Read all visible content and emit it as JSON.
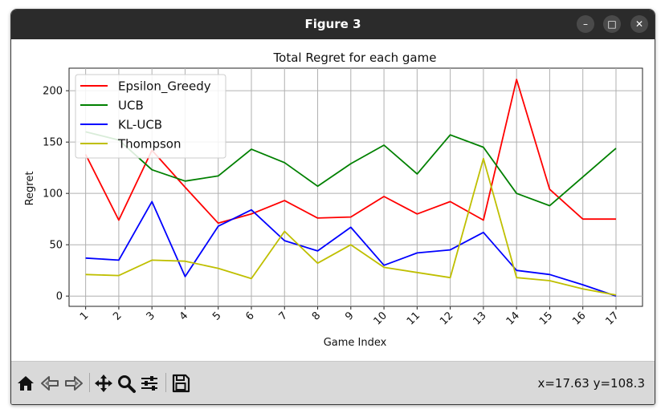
{
  "window": {
    "title": "Figure 3",
    "minimize_symbol": "–",
    "maximize_symbol": "□",
    "close_symbol": "✕"
  },
  "toolbar": {
    "buttons": [
      "home-icon",
      "back-icon",
      "forward-icon",
      "pan-icon",
      "zoom-icon",
      "configure-subplots-icon",
      "save-icon"
    ],
    "coords": "x=17.63 y=108.3"
  },
  "chart_data": {
    "type": "line",
    "title": "Total Regret for each game",
    "xlabel": "Game Index",
    "ylabel": "Regret",
    "x": [
      1,
      2,
      3,
      4,
      5,
      6,
      7,
      8,
      9,
      10,
      11,
      12,
      13,
      14,
      15,
      16,
      17
    ],
    "x_ticks": [
      "1",
      "2",
      "3",
      "4",
      "5",
      "6",
      "7",
      "8",
      "9",
      "10",
      "11",
      "12",
      "13",
      "14",
      "15",
      "16",
      "17"
    ],
    "y_ticks": [
      0,
      50,
      100,
      150,
      200
    ],
    "xlim": [
      0.5,
      17.8
    ],
    "ylim": [
      -10,
      222
    ],
    "grid": true,
    "legend_position": "upper-left",
    "series": [
      {
        "name": "Epsilon_Greedy",
        "color": "#ff0000",
        "values": [
          138,
          74,
          142,
          106,
          71,
          80,
          93,
          76,
          77,
          97,
          80,
          92,
          74,
          211,
          104,
          75,
          75
        ]
      },
      {
        "name": "UCB",
        "color": "#008000",
        "values": [
          160,
          152,
          123,
          112,
          117,
          143,
          130,
          107,
          129,
          147,
          119,
          157,
          145,
          100,
          88,
          116,
          144
        ]
      },
      {
        "name": "KL-UCB",
        "color": "#0000ff",
        "values": [
          37,
          35,
          92,
          19,
          68,
          84,
          54,
          44,
          67,
          30,
          42,
          45,
          62,
          25,
          21,
          11,
          0
        ]
      },
      {
        "name": "Thompson",
        "color": "#bfbf00",
        "values": [
          21,
          20,
          35,
          34,
          27,
          17,
          63,
          32,
          50,
          28,
          23,
          18,
          134,
          18,
          15,
          7,
          1
        ]
      }
    ]
  }
}
